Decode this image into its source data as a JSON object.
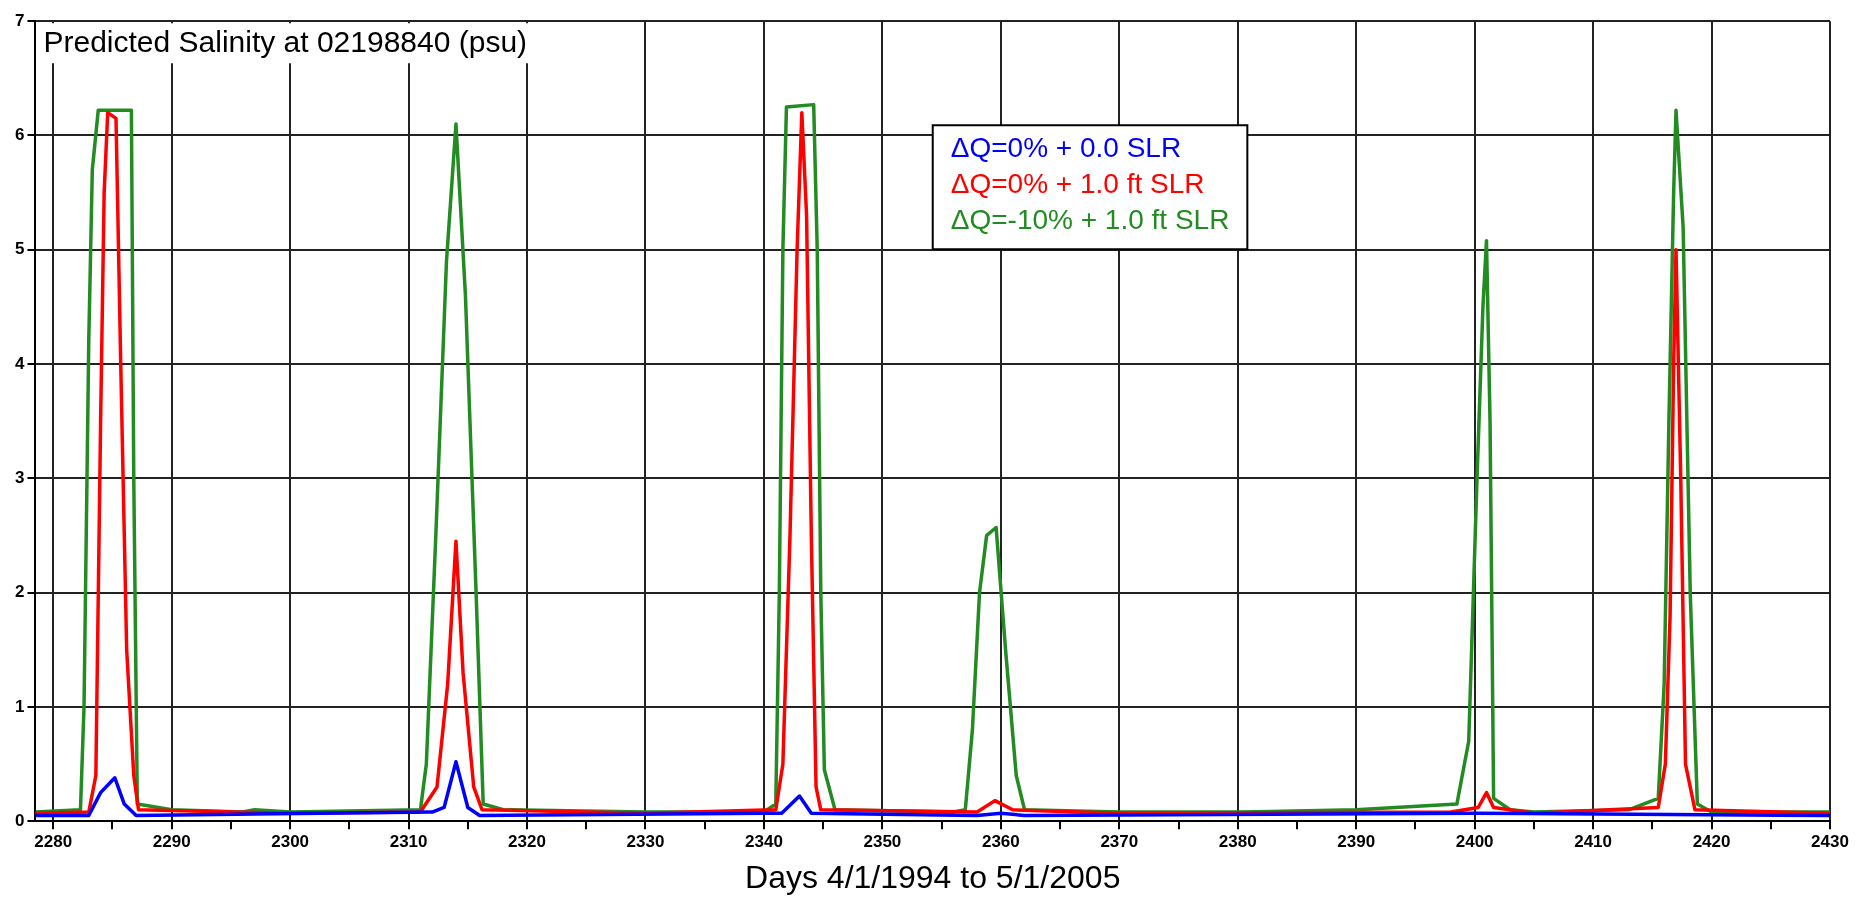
{
  "chart_data": {
    "type": "line",
    "title": "Predicted Salinity at 02198840 (psu)",
    "xlabel": "Days 4/1/1994 to 5/1/2005",
    "xlim": [
      2278.5,
      2430
    ],
    "xticks": [
      2280,
      {
        "value": 2285,
        "label": null
      },
      2290,
      {
        "value": 2295,
        "label": null
      },
      2300,
      {
        "value": 2305,
        "label": null
      },
      2310,
      {
        "value": 2315,
        "label": null
      },
      2320,
      {
        "value": 2325,
        "label": null
      },
      2330,
      {
        "value": 2335,
        "label": null
      },
      2340,
      {
        "value": 2345,
        "label": null
      },
      2350,
      {
        "value": 2355,
        "label": null
      },
      2360,
      {
        "value": 2365,
        "label": null
      },
      2370,
      {
        "value": 2375,
        "label": null
      },
      2380,
      {
        "value": 2385,
        "label": null
      },
      2390,
      {
        "value": 2395,
        "label": null
      },
      2400,
      {
        "value": 2405,
        "label": null
      },
      2410,
      {
        "value": 2415,
        "label": null
      },
      2420,
      {
        "value": 2425,
        "label": null
      },
      2430
    ],
    "ylim": [
      0,
      7
    ],
    "yticks": [
      0,
      1,
      2,
      3,
      4,
      5,
      6,
      7
    ],
    "grid": true,
    "legend": "top right",
    "marker": "none",
    "line_style": "solid",
    "series": [
      {
        "name": "ΔQ=0% + 0.0 SLR",
        "color": "#0000ff",
        "x": [
          2278.5,
          2283,
          2284,
          2285.2,
          2286,
          2287,
          2312,
          2313,
          2314,
          2315,
          2316,
          2341.5,
          2343,
          2344,
          2358,
          2360,
          2362,
          2400,
          2430
        ],
        "values": [
          0.05,
          0.05,
          0.25,
          0.38,
          0.15,
          0.05,
          0.08,
          0.12,
          0.52,
          0.12,
          0.05,
          0.07,
          0.22,
          0.07,
          0.05,
          0.07,
          0.05,
          0.07,
          0.05
        ]
      },
      {
        "name": "ΔQ=0% + 1.0 ft SLR",
        "color": "#ff0000",
        "x": [
          2278.5,
          2283,
          2283.6,
          2284,
          2284.3,
          2284.6,
          2285.3,
          2285.7,
          2286.2,
          2286.8,
          2287.2,
          2300,
          2311,
          2312.4,
          2313.3,
          2314,
          2314.6,
          2315.5,
          2316.2,
          2330,
          2341,
          2341.6,
          2342.2,
          2342.8,
          2343.2,
          2343.6,
          2344,
          2344.4,
          2344.8,
          2358,
          2359.5,
          2361,
          2370,
          2398,
          2400.3,
          2401,
          2401.6,
          2405,
          2415.5,
          2416.1,
          2416.5,
          2416.8,
          2417,
          2417.4,
          2417.8,
          2418.6,
          2430
        ],
        "values": [
          0.07,
          0.08,
          0.4,
          3.5,
          5.5,
          6.2,
          6.15,
          4.0,
          1.5,
          0.4,
          0.1,
          0.07,
          0.08,
          0.3,
          1.2,
          2.45,
          1.3,
          0.3,
          0.1,
          0.07,
          0.1,
          0.5,
          2.5,
          5.0,
          6.2,
          5.3,
          2.5,
          0.3,
          0.1,
          0.08,
          0.18,
          0.1,
          0.07,
          0.08,
          0.12,
          0.25,
          0.12,
          0.07,
          0.12,
          0.5,
          1.8,
          4.0,
          5.0,
          3.0,
          0.5,
          0.1,
          0.07
        ]
      },
      {
        "name": "ΔQ=-10% + 1.0 ft SLR",
        "color": "#228b22",
        "x": [
          2278.5,
          2282.3,
          2282.6,
          2283.0,
          2283.3,
          2283.8,
          2286.6,
          2286.8,
          2287.1,
          2290,
          2296,
          2297,
          2300,
          2311,
          2311.5,
          2312.3,
          2313.2,
          2314,
          2314.8,
          2315.7,
          2316.3,
          2318,
          2330,
          2340,
          2341,
          2341.3,
          2341.6,
          2341.9,
          2344.2,
          2344.5,
          2344.8,
          2345.1,
          2346,
          2356,
          2357,
          2357.6,
          2358.2,
          2358.8,
          2359.6,
          2360.4,
          2361.3,
          2362,
          2370,
          2380,
          2390,
          2398.5,
          2399.5,
          2400.2,
          2400.7,
          2401,
          2401.3,
          2401.6,
          2403,
          2405,
          2413,
          2415.5,
          2416.0,
          2416.4,
          2416.8,
          2417,
          2417.6,
          2418.2,
          2418.8,
          2420,
          2430
        ],
        "values": [
          0.08,
          0.1,
          1.0,
          4.2,
          5.7,
          6.22,
          6.22,
          3.0,
          0.15,
          0.1,
          0.08,
          0.1,
          0.08,
          0.1,
          0.5,
          2.5,
          4.9,
          6.1,
          4.6,
          2.0,
          0.15,
          0.1,
          0.08,
          0.08,
          0.15,
          2.0,
          5.0,
          6.25,
          6.27,
          5.0,
          2.0,
          0.45,
          0.1,
          0.08,
          0.1,
          0.8,
          2.0,
          2.5,
          2.57,
          1.5,
          0.4,
          0.1,
          0.08,
          0.08,
          0.1,
          0.15,
          0.7,
          3.0,
          4.5,
          5.08,
          3.5,
          0.2,
          0.1,
          0.08,
          0.1,
          0.2,
          1.2,
          3.5,
          5.5,
          6.22,
          5.2,
          2.0,
          0.15,
          0.08,
          0.08
        ]
      }
    ]
  }
}
